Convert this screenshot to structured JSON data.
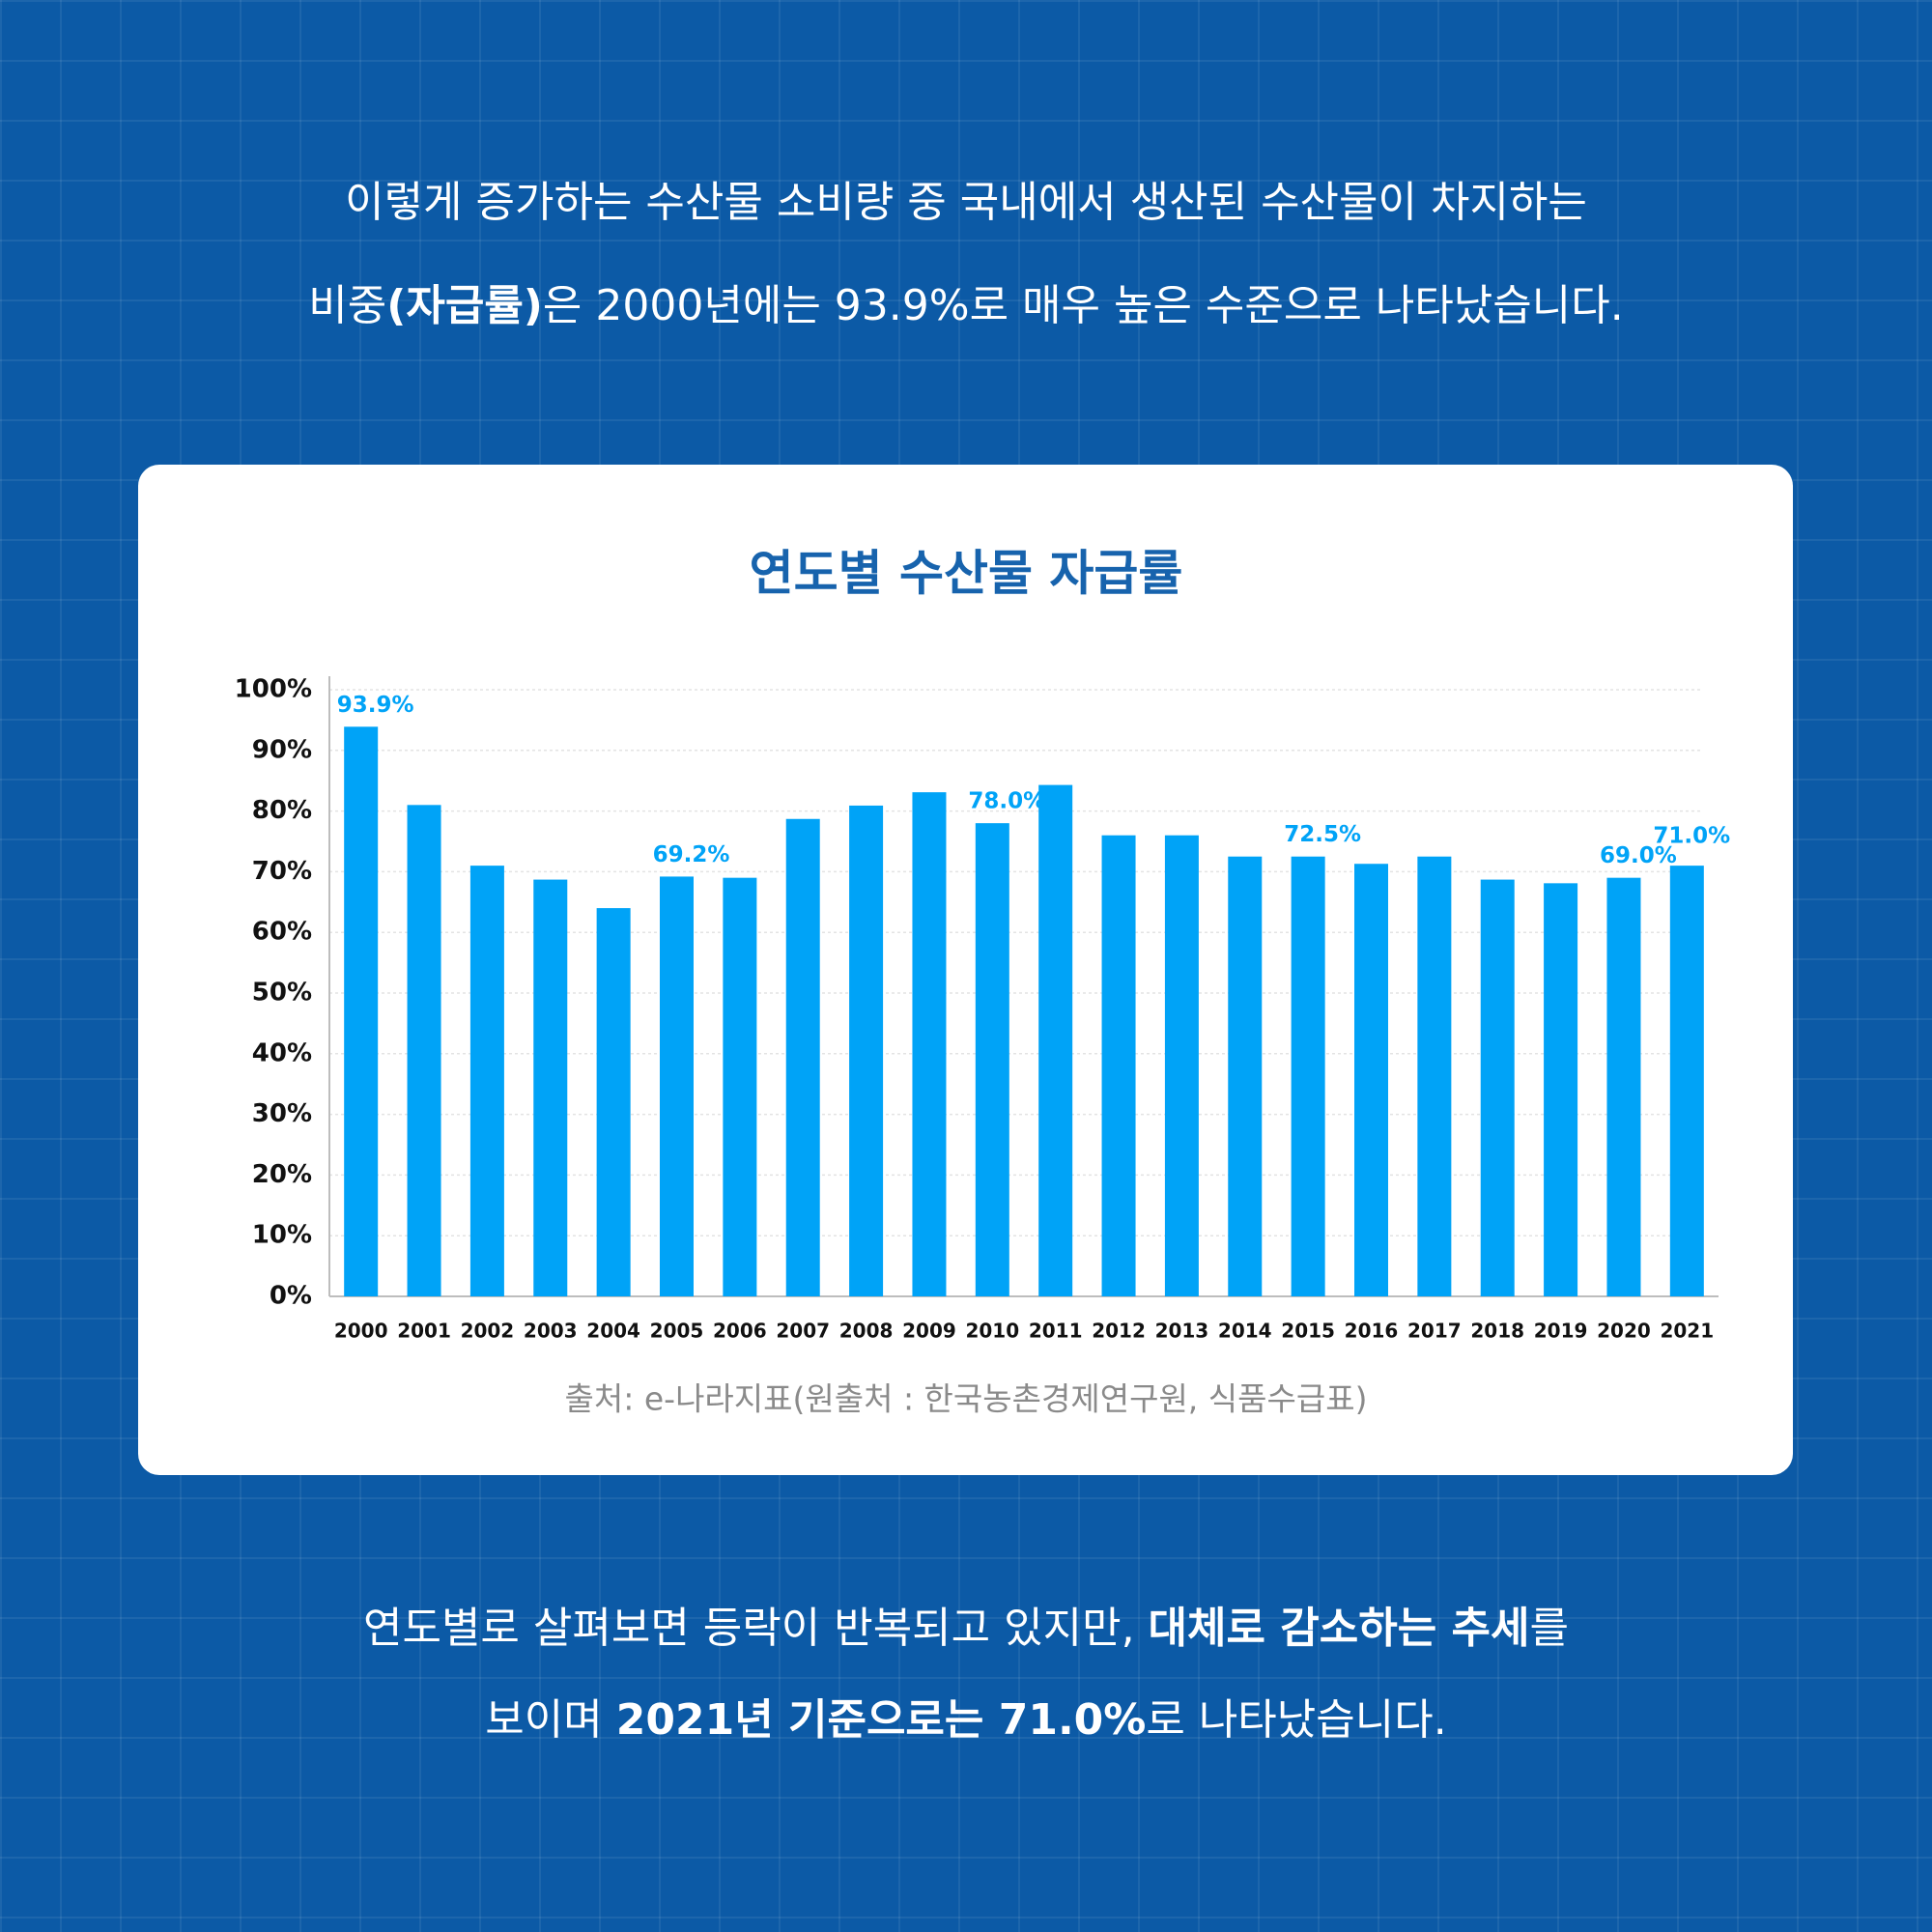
{
  "intro": {
    "lines": [
      [
        {
          "text": "이렇게 증가하는 수산물 소비량 중 국내에서 생산된 수산물이 차지하는",
          "bold": false
        }
      ],
      [
        {
          "text": "비중",
          "bold": false
        },
        {
          "text": "(자급률)",
          "bold": true
        },
        {
          "text": "은 2000년에는 93.9%로 매우 높은 수준으로 나타났습니다.",
          "bold": false
        }
      ]
    ]
  },
  "chart_data": {
    "type": "bar",
    "title": "연도별 수산물 자급률",
    "categories": [
      "2000",
      "2001",
      "2002",
      "2003",
      "2004",
      "2005",
      "2006",
      "2007",
      "2008",
      "2009",
      "2010",
      "2011",
      "2012",
      "2013",
      "2014",
      "2015",
      "2016",
      "2017",
      "2018",
      "2019",
      "2020",
      "2021"
    ],
    "values": [
      93.9,
      81.0,
      71.0,
      68.7,
      64.0,
      69.2,
      69.0,
      78.7,
      80.9,
      83.1,
      78.0,
      84.3,
      76.0,
      76.0,
      72.5,
      72.5,
      71.3,
      72.5,
      68.7,
      68.1,
      69.0,
      71.0
    ],
    "value_labels": [
      "93.9%",
      null,
      null,
      null,
      null,
      "69.2%",
      null,
      null,
      null,
      null,
      "78.0%",
      null,
      null,
      null,
      null,
      "72.5%",
      null,
      null,
      null,
      null,
      "69.0%",
      "71.0%"
    ],
    "color": "#00a3f7",
    "ylim": [
      0,
      100
    ],
    "yticks": [
      {
        "value": 0,
        "label": "0%"
      },
      {
        "value": 10,
        "label": "10%"
      },
      {
        "value": 20,
        "label": "20%"
      },
      {
        "value": 30,
        "label": "30%"
      },
      {
        "value": 40,
        "label": "40%"
      },
      {
        "value": 50,
        "label": "50%"
      },
      {
        "value": 60,
        "label": "60%"
      },
      {
        "value": 70,
        "label": "70%"
      },
      {
        "value": 80,
        "label": "80%"
      },
      {
        "value": 90,
        "label": "90%"
      },
      {
        "value": 100,
        "label": "100%"
      }
    ],
    "grid": true,
    "source": "출처: e-나라지표(원출처 : 한국농촌경제연구원, 식품수급표)"
  },
  "outro": {
    "lines": [
      [
        {
          "text": "연도별로 살펴보면 등락이 반복되고 있지만, ",
          "bold": false
        },
        {
          "text": "대체로 감소하는 추세",
          "bold": true
        },
        {
          "text": "를",
          "bold": false
        }
      ],
      [
        {
          "text": "보이며 ",
          "bold": false
        },
        {
          "text": "2021년 기준으로는 71.0%",
          "bold": true
        },
        {
          "text": "로 나타났습니다.",
          "bold": false
        }
      ]
    ]
  }
}
